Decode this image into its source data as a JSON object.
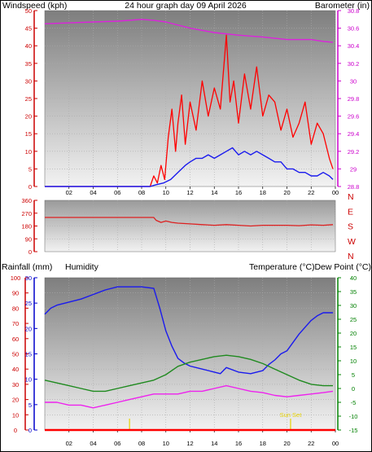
{
  "header": {
    "left_label": "Windspeed (kph)",
    "center_label": "24 hour graph day  09 April 2026",
    "right_label": "Barometer (in)"
  },
  "bottom_header": {
    "rain_label": "Rainfall (mm)",
    "humidity_label": "Humidity",
    "temp_label": "Temperature (°C)",
    "dew_label": "Dew Point (°C)"
  },
  "sun_set_label": "Sun Set",
  "colors": {
    "wind": "#ff0000",
    "avg_wind": "#1a1aee",
    "barometer": "#dd22dd",
    "direction": "#dd2020",
    "humidity": "#1a1aee",
    "temperature": "#1f8a1f",
    "dew_point": "#ee22ee",
    "rain": "#ff0000",
    "sun_marker": "#e6d200",
    "label_red": "#cc0000",
    "label_magenta": "#cc00cc",
    "label_orange": "#e0a000",
    "label_blue": "#0000cc",
    "label_green": "#008000"
  },
  "chart_data": [
    {
      "id": "wind-barometer",
      "type": "line",
      "ylabel": "Windspeed (kph)",
      "y2label": "Barometer (in)",
      "ylim": [
        0,
        50
      ],
      "yticks": [
        0,
        5,
        10,
        15,
        20,
        25,
        30,
        35,
        40,
        45,
        50
      ],
      "y2lim": [
        28.8,
        30.8
      ],
      "y2ticks": [
        28.8,
        29,
        29.2,
        29.4,
        29.6,
        29.8,
        30,
        30.2,
        30.4,
        30.6,
        30.8
      ],
      "xticks": [
        "02",
        "04",
        "06",
        "08",
        "10",
        "12",
        "14",
        "16",
        "18",
        "20",
        "22",
        "00"
      ],
      "xlim_hours": [
        0,
        24
      ],
      "series": [
        {
          "key": "wind",
          "x": [
            0,
            8,
            8.7,
            9.0,
            9.3,
            9.6,
            9.9,
            10.2,
            10.5,
            10.8,
            11.0,
            11.3,
            11.6,
            12.0,
            12.5,
            13.0,
            13.5,
            14.0,
            14.5,
            15.0,
            15.3,
            15.6,
            16.0,
            16.5,
            17.0,
            17.5,
            18.0,
            18.5,
            19.0,
            19.5,
            20.0,
            20.5,
            21.0,
            21.5,
            22.0,
            22.5,
            23.0,
            23.5,
            23.8
          ],
          "y": [
            0,
            0,
            0,
            3,
            1,
            6,
            2,
            14,
            22,
            10,
            18,
            26,
            12,
            24,
            16,
            30,
            20,
            28,
            22,
            43,
            24,
            30,
            18,
            32,
            22,
            34,
            20,
            26,
            24,
            16,
            22,
            14,
            18,
            24,
            12,
            18,
            15,
            8,
            5
          ]
        },
        {
          "key": "avg_wind",
          "x": [
            0,
            8,
            8.7,
            9.2,
            9.8,
            10.4,
            11.0,
            11.6,
            12.0,
            12.5,
            13.0,
            13.5,
            14.0,
            14.5,
            15.0,
            15.5,
            16.0,
            16.5,
            17.0,
            17.5,
            18.0,
            18.5,
            19.0,
            19.5,
            20.0,
            20.5,
            21.0,
            21.5,
            22.0,
            22.5,
            23.0,
            23.5,
            23.8
          ],
          "y": [
            0,
            0,
            0,
            0.5,
            1,
            2,
            4,
            6,
            7,
            8,
            8,
            9,
            8,
            9,
            10,
            11,
            9,
            10,
            9,
            10,
            9,
            8,
            7,
            7,
            5,
            5,
            4,
            4,
            3,
            3,
            4,
            3,
            2
          ]
        },
        {
          "key": "barometer",
          "axis": "y2",
          "x": [
            0,
            2,
            4,
            6,
            8,
            9,
            10,
            12,
            14,
            16,
            18,
            20,
            22,
            23,
            23.8
          ],
          "y": [
            30.65,
            30.66,
            30.67,
            30.68,
            30.7,
            30.69,
            30.67,
            30.6,
            30.55,
            30.52,
            30.5,
            30.47,
            30.47,
            30.45,
            30.44
          ]
        }
      ]
    },
    {
      "id": "wind-direction",
      "type": "line",
      "ylim": [
        0,
        360
      ],
      "yticks": [
        0,
        90,
        180,
        270,
        360
      ],
      "yticklabels": [
        "0",
        "90",
        "180",
        "270",
        "360"
      ],
      "direction_labels": [
        "N",
        "W",
        "S",
        "E",
        "N"
      ],
      "xlim_hours": [
        0,
        24
      ],
      "series": [
        {
          "key": "direction",
          "x": [
            0,
            9,
            9.2,
            9.6,
            10,
            10.5,
            11,
            12,
            13,
            14,
            15,
            16,
            17,
            18,
            19,
            20,
            21,
            22,
            23,
            23.8
          ],
          "y": [
            240,
            240,
            220,
            205,
            215,
            205,
            200,
            195,
            190,
            185,
            190,
            185,
            180,
            185,
            185,
            185,
            182,
            188,
            185,
            190
          ]
        }
      ]
    },
    {
      "id": "rain-humidity-temp",
      "type": "line",
      "ylabel": "Humidity",
      "ylim": [
        0,
        100
      ],
      "yticks": [
        0,
        10,
        20,
        30,
        40,
        50,
        60,
        70,
        80,
        90,
        100
      ],
      "rain_lim": [
        0,
        30
      ],
      "rain_ticks": [
        0,
        5,
        10,
        15,
        20,
        25,
        30
      ],
      "y2lim": [
        -15,
        40
      ],
      "y2ticks": [
        -15,
        -10,
        -5,
        0,
        5,
        10,
        15,
        20,
        25,
        30,
        35,
        40
      ],
      "xticks": [
        "02",
        "04",
        "06",
        "08",
        "10",
        "12",
        "14",
        "16",
        "18",
        "20",
        "22",
        "00"
      ],
      "xlim_hours": [
        0,
        24
      ],
      "sun_markers": [
        7.0,
        20.3
      ],
      "series": [
        {
          "key": "humidity",
          "x": [
            0,
            0.5,
            1,
            2,
            3,
            4,
            5,
            6,
            7,
            7.5,
            8,
            9,
            9.5,
            10,
            10.5,
            11,
            11.5,
            12,
            13,
            14,
            14.5,
            15,
            16,
            17,
            18,
            18.5,
            19,
            19.5,
            20,
            21,
            22,
            22.5,
            23,
            23.8
          ],
          "y": [
            76,
            80,
            82,
            84,
            86,
            89,
            92,
            94,
            94,
            94,
            94,
            93,
            80,
            65,
            55,
            47,
            44,
            42,
            40,
            38,
            37,
            41,
            38,
            37,
            39,
            43,
            46,
            50,
            52,
            63,
            72,
            75,
            77,
            77
          ]
        },
        {
          "key": "temperature",
          "axis": "y2",
          "x": [
            0,
            1,
            2,
            3,
            4,
            5,
            6,
            7,
            8,
            9,
            10,
            11,
            12,
            13,
            14,
            15,
            16,
            17,
            18,
            19,
            20,
            21,
            22,
            23,
            23.8
          ],
          "y": [
            3,
            2,
            1,
            0,
            -1,
            -1,
            0,
            1,
            2,
            3,
            5,
            8,
            9.5,
            10.5,
            11.5,
            12,
            11.5,
            10.5,
            9,
            7,
            5,
            3,
            1.5,
            1,
            1
          ]
        },
        {
          "key": "dew_point",
          "axis": "y2",
          "x": [
            0,
            1,
            2,
            3,
            4,
            5,
            6,
            7,
            8,
            9,
            10,
            11,
            12,
            13,
            14,
            15,
            16,
            17,
            18,
            19,
            20,
            21,
            22,
            23,
            23.8
          ],
          "y": [
            -5,
            -5,
            -6,
            -6,
            -7,
            -6,
            -5,
            -4,
            -3,
            -2,
            -2,
            -2,
            -1,
            -1,
            0,
            1,
            0,
            -1,
            -1.5,
            -2.5,
            -3,
            -2.5,
            -2,
            -1.5,
            -1
          ]
        },
        {
          "key": "rain",
          "axis": "rain",
          "x": [
            0,
            24
          ],
          "y": [
            0,
            0
          ]
        }
      ]
    }
  ]
}
